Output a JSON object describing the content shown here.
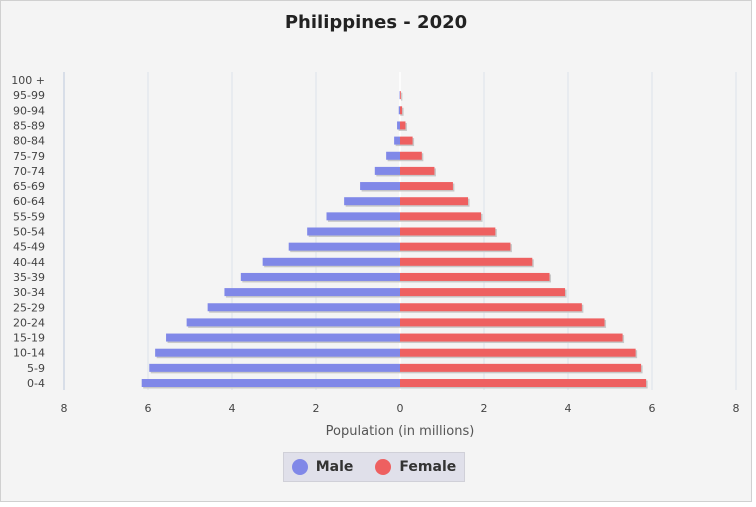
{
  "chart_data": {
    "type": "bar",
    "title": "Philippines - 2020",
    "xlabel": "Population (in millions)",
    "xlim": [
      -8,
      8
    ],
    "x_ticks": [
      "8",
      "6",
      "4",
      "2",
      "0",
      "2",
      "4",
      "6",
      "8"
    ],
    "categories": [
      "100 +",
      "95-99",
      "90-94",
      "85-89",
      "80-84",
      "75-79",
      "70-74",
      "65-69",
      "60-64",
      "55-59",
      "50-54",
      "45-49",
      "40-44",
      "35-39",
      "30-34",
      "25-29",
      "20-24",
      "15-19",
      "10-14",
      "5-9",
      "0-4"
    ],
    "series": [
      {
        "name": "Male",
        "color": "#8088e8",
        "values": [
          0.0,
          0.01,
          0.03,
          0.07,
          0.14,
          0.33,
          0.6,
          0.95,
          1.33,
          1.75,
          2.21,
          2.65,
          3.27,
          3.79,
          4.18,
          4.58,
          5.08,
          5.57,
          5.83,
          5.97,
          6.15
        ]
      },
      {
        "name": "Female",
        "color": "#ee6060",
        "values": [
          0.0,
          0.02,
          0.05,
          0.13,
          0.3,
          0.52,
          0.82,
          1.26,
          1.62,
          1.93,
          2.27,
          2.63,
          3.15,
          3.56,
          3.93,
          4.33,
          4.87,
          5.3,
          5.61,
          5.74,
          5.86
        ]
      }
    ],
    "grid": true,
    "legend_position": "bottom"
  }
}
